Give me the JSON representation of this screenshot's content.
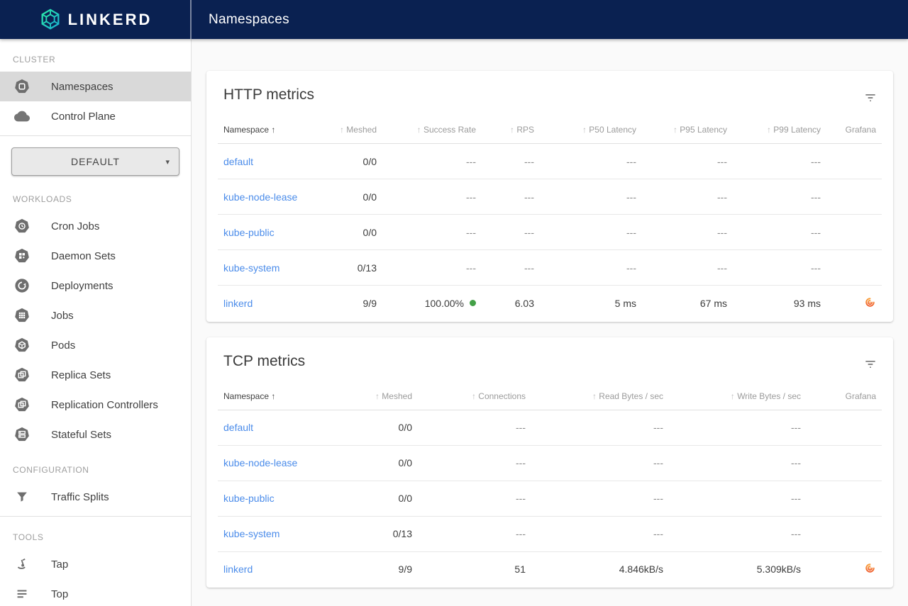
{
  "colors": {
    "navy": "#0a2151",
    "link": "#4b8cea",
    "success": "#43a047",
    "grafana_orange_top": "#f9a03c",
    "grafana_orange_bottom": "#ef5a28",
    "selected_item_bg": "#d9d9d9"
  },
  "header": {
    "brand": "LINKERD",
    "page_title": "Namespaces"
  },
  "sidebar": {
    "selector": {
      "value": "DEFAULT"
    },
    "sections": [
      {
        "label": "CLUSTER",
        "items": [
          {
            "label": "Namespaces",
            "icon": "namespaces-icon",
            "selected": true
          },
          {
            "label": "Control Plane",
            "icon": "cloud-icon",
            "selected": false
          }
        ],
        "divider_after": true,
        "selector_after": true
      },
      {
        "label": "WORKLOADS",
        "items": [
          {
            "label": "Cron Jobs",
            "icon": "cron-jobs-icon",
            "selected": false
          },
          {
            "label": "Daemon Sets",
            "icon": "daemon-sets-icon",
            "selected": false
          },
          {
            "label": "Deployments",
            "icon": "deployments-icon",
            "selected": false
          },
          {
            "label": "Jobs",
            "icon": "jobs-icon",
            "selected": false
          },
          {
            "label": "Pods",
            "icon": "pods-icon",
            "selected": false
          },
          {
            "label": "Replica Sets",
            "icon": "replica-sets-icon",
            "selected": false
          },
          {
            "label": "Replication Controllers",
            "icon": "replication-controllers-icon",
            "selected": false
          },
          {
            "label": "Stateful Sets",
            "icon": "stateful-sets-icon",
            "selected": false
          }
        ],
        "divider_after": false,
        "selector_after": false
      },
      {
        "label": "CONFIGURATION",
        "items": [
          {
            "label": "Traffic Splits",
            "icon": "traffic-splits-icon",
            "selected": false
          }
        ],
        "divider_after": true,
        "selector_after": false
      },
      {
        "label": "TOOLS",
        "items": [
          {
            "label": "Tap",
            "icon": "tap-icon",
            "selected": false
          },
          {
            "label": "Top",
            "icon": "top-icon",
            "selected": false
          }
        ],
        "divider_after": false,
        "selector_after": false
      }
    ]
  },
  "http_metrics": {
    "title": "HTTP metrics",
    "columns": [
      {
        "key": "namespace",
        "label": "Namespace",
        "sortable": true,
        "active": true,
        "align": "left"
      },
      {
        "key": "meshed",
        "label": "Meshed",
        "sortable": true,
        "active": false,
        "align": "right"
      },
      {
        "key": "success_rate",
        "label": "Success Rate",
        "sortable": true,
        "active": false,
        "align": "right"
      },
      {
        "key": "rps",
        "label": "RPS",
        "sortable": true,
        "active": false,
        "align": "right"
      },
      {
        "key": "p50",
        "label": "P50 Latency",
        "sortable": true,
        "active": false,
        "align": "right"
      },
      {
        "key": "p95",
        "label": "P95 Latency",
        "sortable": true,
        "active": false,
        "align": "right"
      },
      {
        "key": "p99",
        "label": "P99 Latency",
        "sortable": true,
        "active": false,
        "align": "right"
      },
      {
        "key": "grafana",
        "label": "Grafana",
        "sortable": false,
        "active": false,
        "align": "right"
      }
    ],
    "rows": [
      {
        "namespace": "default",
        "meshed": "0/0",
        "success_rate": "---",
        "rps": "---",
        "p50": "---",
        "p95": "---",
        "p99": "---",
        "success_dot": false,
        "grafana": false
      },
      {
        "namespace": "kube-node-lease",
        "meshed": "0/0",
        "success_rate": "---",
        "rps": "---",
        "p50": "---",
        "p95": "---",
        "p99": "---",
        "success_dot": false,
        "grafana": false
      },
      {
        "namespace": "kube-public",
        "meshed": "0/0",
        "success_rate": "---",
        "rps": "---",
        "p50": "---",
        "p95": "---",
        "p99": "---",
        "success_dot": false,
        "grafana": false
      },
      {
        "namespace": "kube-system",
        "meshed": "0/13",
        "success_rate": "---",
        "rps": "---",
        "p50": "---",
        "p95": "---",
        "p99": "---",
        "success_dot": false,
        "grafana": false
      },
      {
        "namespace": "linkerd",
        "meshed": "9/9",
        "success_rate": "100.00%",
        "rps": "6.03",
        "p50": "5 ms",
        "p95": "67 ms",
        "p99": "93 ms",
        "success_dot": true,
        "grafana": true
      }
    ]
  },
  "tcp_metrics": {
    "title": "TCP metrics",
    "columns": [
      {
        "key": "namespace",
        "label": "Namespace",
        "sortable": true,
        "active": true,
        "align": "left"
      },
      {
        "key": "meshed",
        "label": "Meshed",
        "sortable": true,
        "active": false,
        "align": "right"
      },
      {
        "key": "connections",
        "label": "Connections",
        "sortable": true,
        "active": false,
        "align": "right"
      },
      {
        "key": "read_bytes",
        "label": "Read Bytes / sec",
        "sortable": true,
        "active": false,
        "align": "right"
      },
      {
        "key": "write_bytes",
        "label": "Write Bytes / sec",
        "sortable": true,
        "active": false,
        "align": "right"
      },
      {
        "key": "grafana",
        "label": "Grafana",
        "sortable": false,
        "active": false,
        "align": "right"
      }
    ],
    "rows": [
      {
        "namespace": "default",
        "meshed": "0/0",
        "connections": "---",
        "read_bytes": "---",
        "write_bytes": "---",
        "success_dot": false,
        "grafana": false
      },
      {
        "namespace": "kube-node-lease",
        "meshed": "0/0",
        "connections": "---",
        "read_bytes": "---",
        "write_bytes": "---",
        "success_dot": false,
        "grafana": false
      },
      {
        "namespace": "kube-public",
        "meshed": "0/0",
        "connections": "---",
        "read_bytes": "---",
        "write_bytes": "---",
        "success_dot": false,
        "grafana": false
      },
      {
        "namespace": "kube-system",
        "meshed": "0/13",
        "connections": "---",
        "read_bytes": "---",
        "write_bytes": "---",
        "success_dot": false,
        "grafana": false
      },
      {
        "namespace": "linkerd",
        "meshed": "9/9",
        "connections": "51",
        "read_bytes": "4.846kB/s",
        "write_bytes": "5.309kB/s",
        "success_dot": false,
        "grafana": true
      }
    ]
  }
}
